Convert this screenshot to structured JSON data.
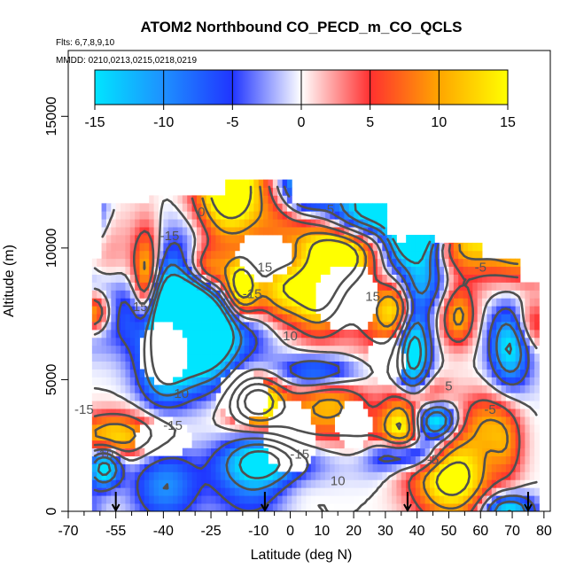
{
  "chart_data": {
    "type": "heatmap",
    "title": "ATOM2 Northbound CO_PECD_m_CO_QCLS",
    "subtitle_flights": "Flts: 6,7,8,9,10",
    "subtitle_dates": "MMDD: 0210,0213,0215,0218,0219",
    "xlabel": "Latitude (deg N)",
    "ylabel": "Altitude (m)",
    "xlim": [
      -70,
      82
    ],
    "ylim": [
      0,
      17500
    ],
    "x_ticks": [
      -70,
      -55,
      -40,
      -25,
      -10,
      0,
      10,
      20,
      30,
      40,
      50,
      60,
      70,
      80
    ],
    "x_tick_labels": [
      "-70",
      "-55",
      "-40",
      "-25",
      "-10",
      "0",
      "10",
      "20",
      "30",
      "40",
      "50",
      "60",
      "70",
      "80"
    ],
    "x_minor_ticks": [
      -65,
      -60,
      -50,
      -45,
      -35,
      -30,
      -20,
      -15,
      -5,
      5,
      15,
      25,
      35,
      45,
      55,
      65,
      75
    ],
    "y_ticks": [
      0,
      5000,
      10000,
      15000
    ],
    "y_tick_labels": [
      "0",
      "5000",
      "10000",
      "15000"
    ],
    "colorbar": {
      "range": [
        -15,
        15
      ],
      "ticks": [
        -15,
        -10,
        -5,
        0,
        5,
        10,
        15
      ],
      "tick_labels": [
        "-15",
        "-10",
        "-5",
        "0",
        "5",
        "10",
        "15"
      ],
      "colors": [
        "#00e5ff",
        "#1e90ff",
        "#2035ff",
        "#ffffff",
        "#ff3030",
        "#ffa500",
        "#ffff00"
      ]
    },
    "flight_arrow_latitudes": [
      -55,
      -8,
      37,
      75
    ],
    "contour_labels": [
      {
        "text": "-15",
        "x": -38,
        "y": 10300
      },
      {
        "text": "15",
        "x": -8,
        "y": 9100
      },
      {
        "text": "-15",
        "x": -12,
        "y": 8100
      },
      {
        "text": "15",
        "x": 26,
        "y": 8000
      },
      {
        "text": "-15",
        "x": -48,
        "y": 7600
      },
      {
        "text": "10",
        "x": 0,
        "y": 6500
      },
      {
        "text": "-5",
        "x": 12,
        "y": 11300
      },
      {
        "text": "-5",
        "x": 60,
        "y": 9100
      },
      {
        "text": "-10",
        "x": -35,
        "y": 4300
      },
      {
        "text": "-15",
        "x": -37,
        "y": 3100
      },
      {
        "text": "-15",
        "x": 3,
        "y": 2000
      },
      {
        "text": "10",
        "x": 15,
        "y": 1000
      },
      {
        "text": "-5",
        "x": 45,
        "y": 1800
      },
      {
        "text": "-5",
        "x": 63,
        "y": 3700
      },
      {
        "text": "10",
        "x": -58,
        "y": 2000
      },
      {
        "text": "0",
        "x": -28,
        "y": 11200
      },
      {
        "text": "5",
        "x": 50,
        "y": 4600
      },
      {
        "text": "-15",
        "x": -65,
        "y": 3700
      }
    ]
  }
}
